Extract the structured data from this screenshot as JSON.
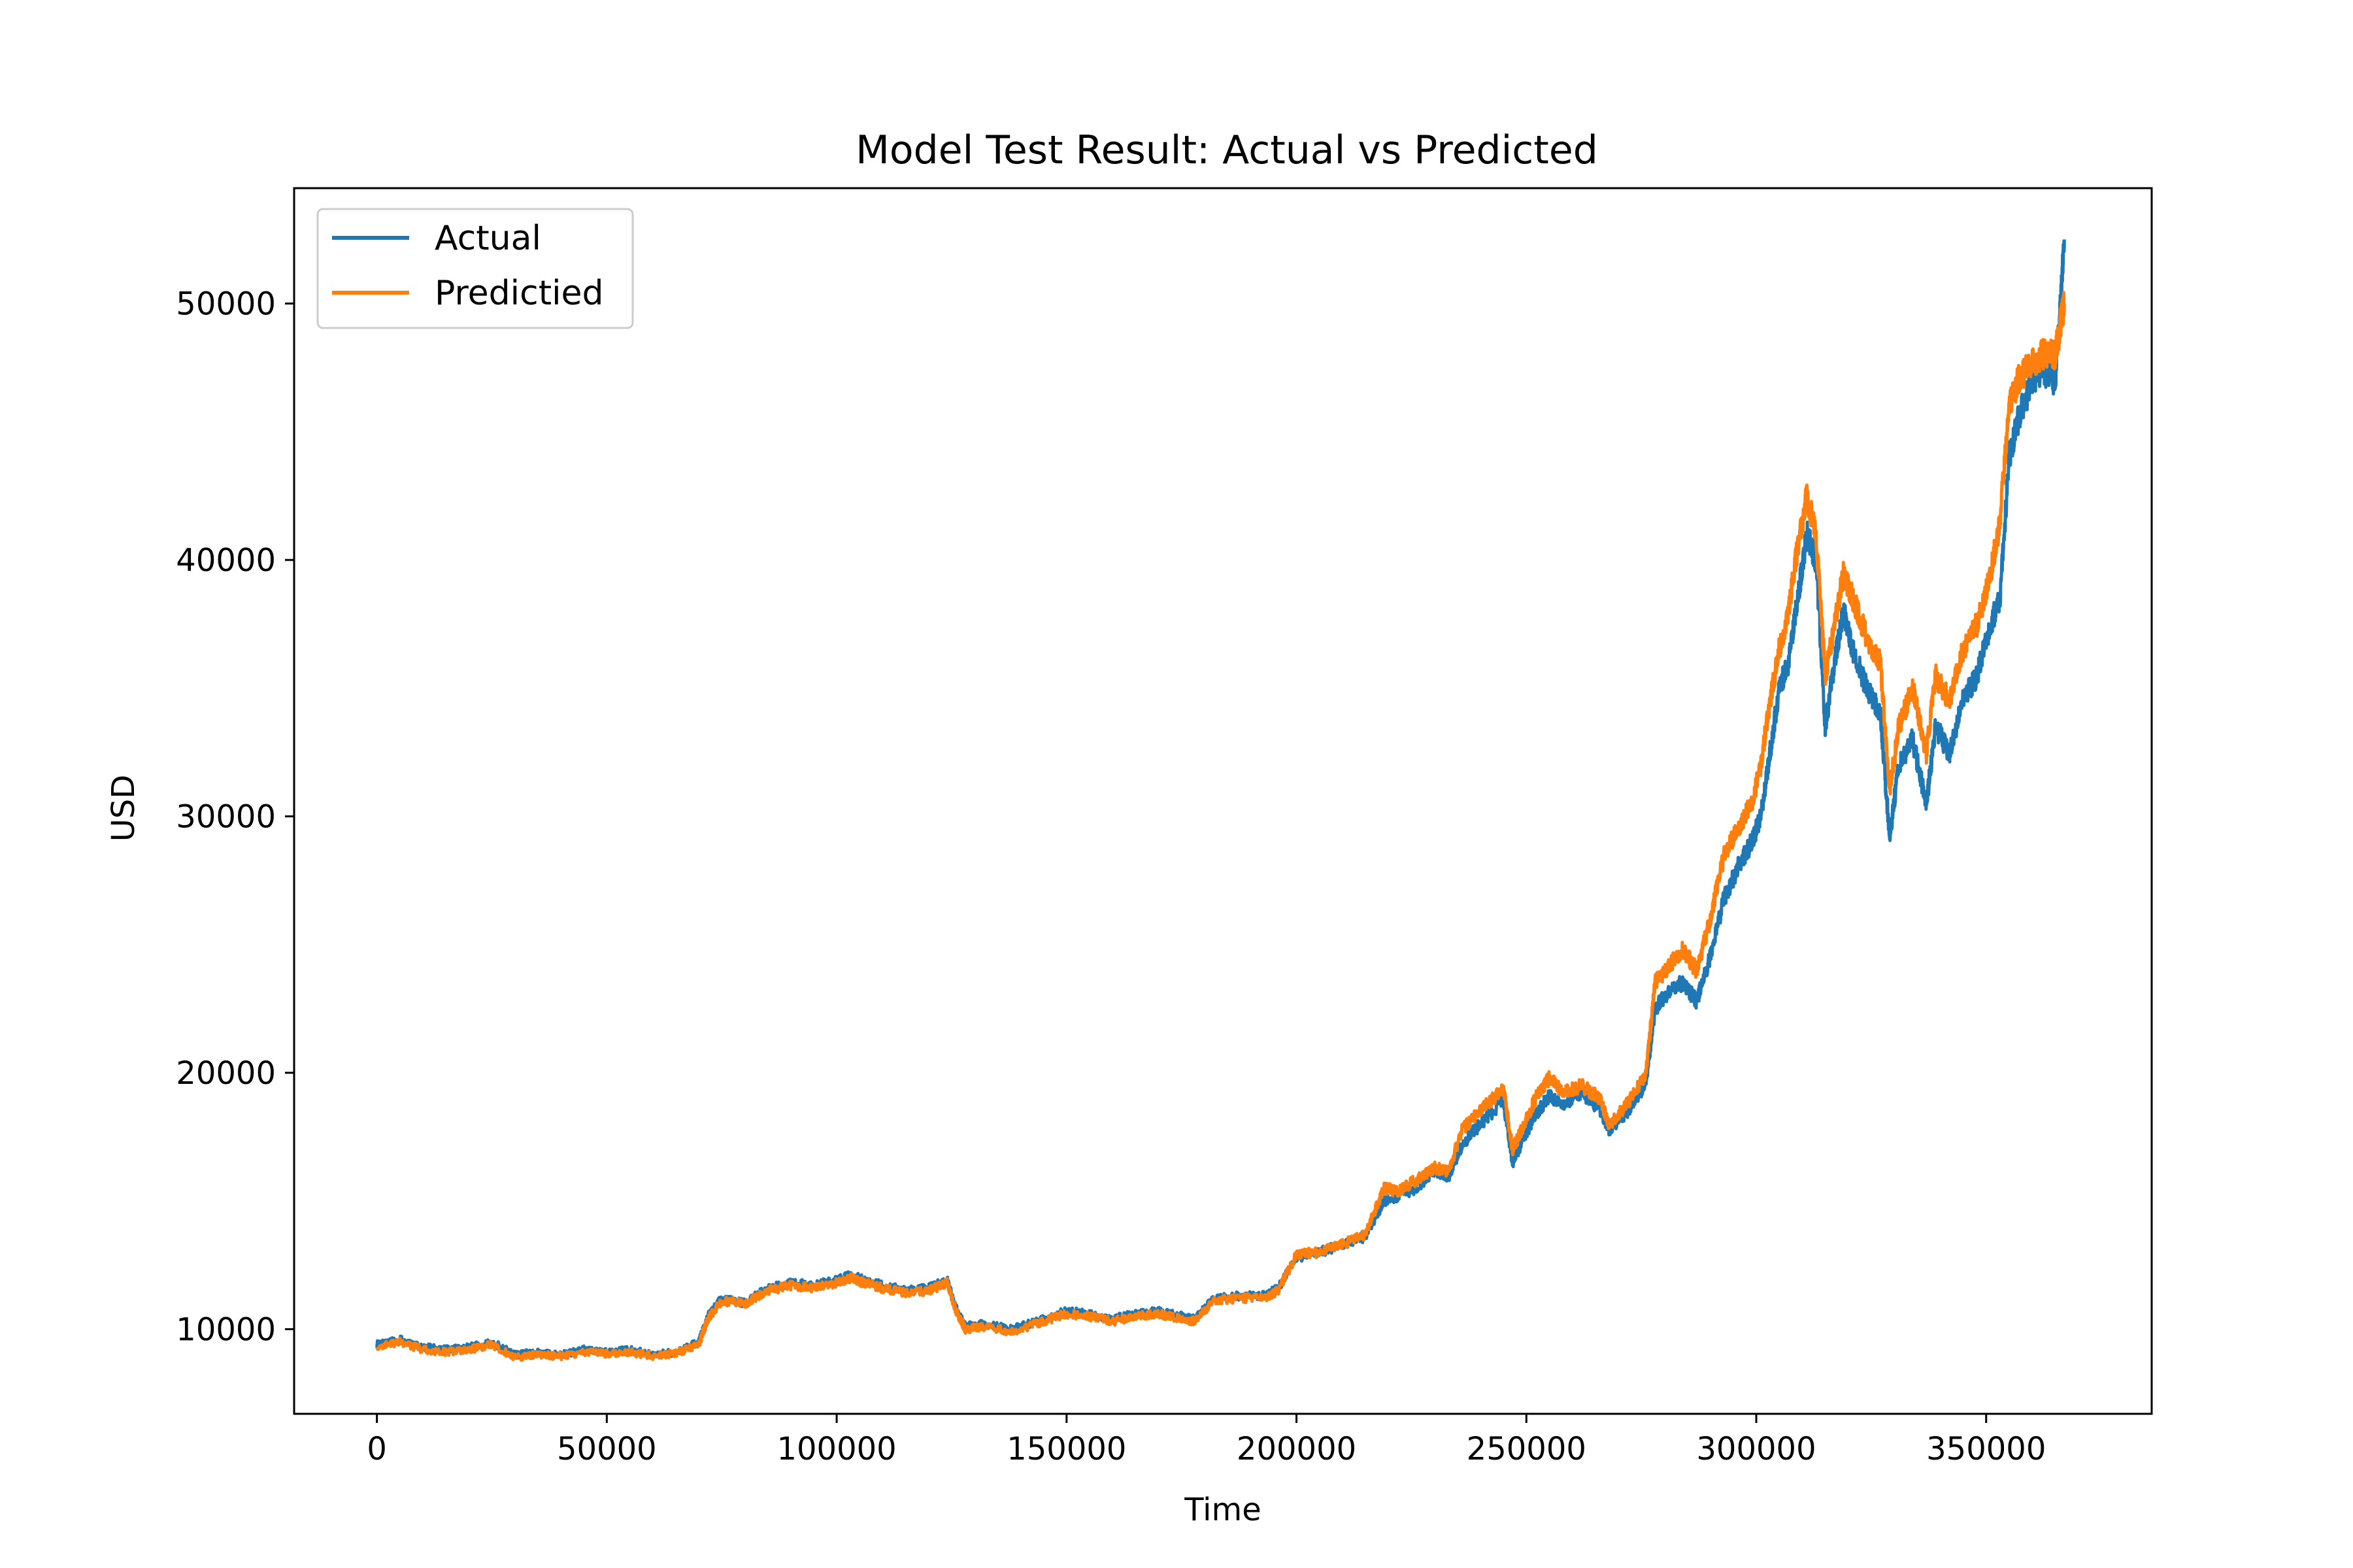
{
  "chart_data": {
    "type": "line",
    "title": "Model Test Result: Actual vs Predicted",
    "xlabel": "Time",
    "ylabel": "USD",
    "xlim": [
      -18000,
      386000
    ],
    "ylim": [
      6700,
      54500
    ],
    "xticks": [
      0,
      50000,
      100000,
      150000,
      200000,
      250000,
      300000,
      350000
    ],
    "yticks": [
      10000,
      20000,
      30000,
      40000,
      50000
    ],
    "grid": false,
    "legend": "top-left",
    "series": [
      {
        "name": "Actual",
        "color": "#1f77b4",
        "x": [
          0,
          5000,
          10000,
          15000,
          20000,
          25000,
          30000,
          35000,
          40000,
          45000,
          50000,
          55000,
          60000,
          65000,
          70000,
          72000,
          75000,
          80000,
          85000,
          90000,
          95000,
          100000,
          103000,
          106000,
          110000,
          115000,
          120000,
          124000,
          126000,
          128000,
          132000,
          138000,
          145000,
          150000,
          155000,
          160000,
          165000,
          170000,
          175000,
          178000,
          182000,
          187000,
          193000,
          196000,
          200000,
          205000,
          210000,
          215000,
          219000,
          222000,
          226000,
          230000,
          233000,
          236000,
          240000,
          245000,
          247000,
          249000,
          252000,
          255000,
          258000,
          262000,
          266000,
          268000,
          272000,
          276000,
          278000,
          281000,
          284000,
          287000,
          290000,
          293000,
          296000,
          299000,
          301000,
          303000,
          305000,
          307000,
          309000,
          311000,
          313000,
          315000,
          317000,
          319000,
          321000,
          324000,
          327000,
          329000,
          331000,
          334000,
          337000,
          339000,
          342000,
          345000,
          348000,
          351000,
          353000,
          355000,
          357000,
          359000,
          362000,
          365000,
          366000,
          367000
        ],
        "y": [
          9400,
          9600,
          9300,
          9200,
          9300,
          9500,
          9000,
          9100,
          9000,
          9200,
          9100,
          9200,
          9000,
          9100,
          9500,
          10500,
          11200,
          11000,
          11600,
          11800,
          11700,
          11900,
          12100,
          11900,
          11700,
          11500,
          11600,
          11900,
          10800,
          10100,
          10200,
          10000,
          10400,
          10700,
          10600,
          10400,
          10600,
          10700,
          10500,
          10400,
          11200,
          11300,
          11300,
          11600,
          12800,
          13000,
          13300,
          13600,
          15000,
          15200,
          15500,
          16200,
          15900,
          17200,
          18000,
          18900,
          16500,
          17300,
          18400,
          19100,
          18800,
          19200,
          18600,
          17800,
          18500,
          19600,
          22500,
          23200,
          23500,
          22800,
          24500,
          26800,
          28000,
          29000,
          30000,
          32500,
          35000,
          36000,
          38500,
          41000,
          40000,
          33500,
          36000,
          38000,
          36500,
          35000,
          34000,
          29200,
          32000,
          33000,
          30500,
          33500,
          32500,
          34500,
          35500,
          37500,
          38500,
          44000,
          45500,
          46500,
          47500,
          47000,
          49500,
          52500
        ]
      },
      {
        "name": "Predictied",
        "color": "#ff7f0e",
        "x": [
          0,
          5000,
          10000,
          15000,
          20000,
          25000,
          30000,
          35000,
          40000,
          45000,
          50000,
          55000,
          60000,
          65000,
          70000,
          72000,
          75000,
          80000,
          85000,
          90000,
          95000,
          100000,
          103000,
          106000,
          110000,
          115000,
          120000,
          124000,
          126000,
          128000,
          132000,
          138000,
          145000,
          150000,
          155000,
          160000,
          165000,
          170000,
          175000,
          178000,
          182000,
          187000,
          193000,
          196000,
          200000,
          205000,
          210000,
          215000,
          219000,
          222000,
          226000,
          230000,
          233000,
          236000,
          240000,
          245000,
          247000,
          249000,
          252000,
          255000,
          258000,
          262000,
          266000,
          268000,
          272000,
          276000,
          278000,
          281000,
          284000,
          287000,
          290000,
          293000,
          296000,
          299000,
          301000,
          303000,
          305000,
          307000,
          309000,
          311000,
          313000,
          315000,
          317000,
          319000,
          321000,
          324000,
          327000,
          329000,
          331000,
          334000,
          337000,
          339000,
          342000,
          345000,
          348000,
          351000,
          353000,
          355000,
          357000,
          359000,
          362000,
          365000,
          366000,
          367000
        ],
        "y": [
          9300,
          9500,
          9200,
          9100,
          9200,
          9400,
          8900,
          9000,
          8950,
          9100,
          9050,
          9100,
          8950,
          9050,
          9400,
          10400,
          11100,
          11000,
          11500,
          11700,
          11600,
          11800,
          12000,
          11800,
          11600,
          11400,
          11500,
          11800,
          10700,
          10000,
          10100,
          9900,
          10300,
          10600,
          10500,
          10300,
          10500,
          10600,
          10400,
          10300,
          11100,
          11200,
          11200,
          11500,
          12900,
          13000,
          13300,
          13700,
          15500,
          15400,
          15800,
          16300,
          16100,
          17800,
          18500,
          19400,
          17000,
          17800,
          19000,
          19800,
          19200,
          19500,
          19000,
          18000,
          18800,
          20000,
          23500,
          24200,
          24800,
          24000,
          26000,
          28500,
          29500,
          30500,
          32000,
          34500,
          36500,
          38000,
          40500,
          42500,
          41000,
          35500,
          37500,
          39500,
          38500,
          37000,
          36000,
          31000,
          33500,
          35000,
          32500,
          35500,
          34500,
          36500,
          37500,
          39500,
          41500,
          46000,
          47000,
          47500,
          48000,
          48000,
          49000,
          50000
        ]
      }
    ]
  }
}
